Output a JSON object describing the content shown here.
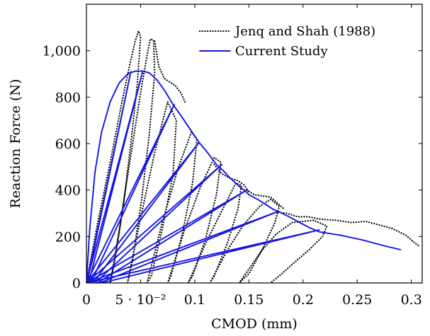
{
  "chart_data": {
    "type": "line",
    "xlabel": "CMOD (mm)",
    "ylabel": "Reaction Force (N)",
    "xlim": [
      0,
      0.31
    ],
    "ylim": [
      0,
      1200
    ],
    "x_ticks": [
      0,
      0.05,
      0.1,
      0.15,
      0.2,
      0.25,
      0.3
    ],
    "x_tick_labels": [
      "0",
      "5 · 10⁻²",
      "0.1",
      "0.15",
      "0.2",
      "0.25",
      "0.3"
    ],
    "y_ticks": [
      0,
      200,
      400,
      600,
      800,
      1000
    ],
    "y_tick_labels": [
      "0",
      "200",
      "400",
      "600",
      "800",
      "1,000"
    ],
    "grid": false,
    "legend_position": "top-right",
    "series": [
      {
        "name": "Jenq and Shah (1988)",
        "style": "dotted",
        "color": "#000000",
        "segments": [
          [
            [
              0,
              0
            ],
            [
              0.01,
              250
            ],
            [
              0.022,
              520
            ],
            [
              0.032,
              760
            ],
            [
              0.04,
              940
            ],
            [
              0.045,
              1040
            ],
            [
              0.048,
              1085
            ],
            [
              0.05,
              1060
            ],
            [
              0.047,
              860
            ],
            [
              0.041,
              600
            ],
            [
              0.034,
              330
            ],
            [
              0.026,
              90
            ],
            [
              0.022,
              0
            ]
          ],
          [
            [
              0.022,
              0
            ],
            [
              0.03,
              220
            ],
            [
              0.04,
              520
            ],
            [
              0.05,
              820
            ],
            [
              0.056,
              980
            ],
            [
              0.059,
              1050
            ],
            [
              0.062,
              1045
            ],
            [
              0.063,
              900
            ],
            [
              0.058,
              640
            ],
            [
              0.051,
              360
            ],
            [
              0.043,
              110
            ],
            [
              0.038,
              0
            ]
          ],
          [
            [
              0.063,
              1040
            ],
            [
              0.067,
              930
            ],
            [
              0.072,
              880
            ],
            [
              0.077,
              865
            ],
            [
              0.082,
              850
            ],
            [
              0.087,
              820
            ],
            [
              0.091,
              780
            ]
          ],
          [
            [
              0.038,
              0
            ],
            [
              0.05,
              280
            ],
            [
              0.063,
              560
            ],
            [
              0.075,
              780
            ],
            [
              0.083,
              700
            ],
            [
              0.08,
              470
            ],
            [
              0.07,
              230
            ],
            [
              0.06,
              30
            ],
            [
              0.056,
              0
            ]
          ],
          [
            [
              0.056,
              0
            ],
            [
              0.07,
              260
            ],
            [
              0.085,
              500
            ],
            [
              0.097,
              650
            ],
            [
              0.102,
              620
            ],
            [
              0.098,
              430
            ],
            [
              0.088,
              200
            ],
            [
              0.078,
              30
            ],
            [
              0.075,
              0
            ]
          ],
          [
            [
              0.075,
              0
            ],
            [
              0.09,
              220
            ],
            [
              0.105,
              410
            ],
            [
              0.118,
              540
            ],
            [
              0.124,
              520
            ],
            [
              0.12,
              380
            ],
            [
              0.11,
              190
            ],
            [
              0.098,
              30
            ],
            [
              0.094,
              0
            ]
          ],
          [
            [
              0.094,
              0
            ],
            [
              0.11,
              170
            ],
            [
              0.125,
              310
            ],
            [
              0.138,
              430
            ],
            [
              0.143,
              420
            ],
            [
              0.14,
              320
            ],
            [
              0.13,
              170
            ],
            [
              0.118,
              30
            ],
            [
              0.114,
              0
            ]
          ],
          [
            [
              0.118,
              510
            ],
            [
              0.125,
              470
            ],
            [
              0.133,
              450
            ],
            [
              0.14,
              440
            ],
            [
              0.146,
              420
            ],
            [
              0.15,
              390
            ]
          ],
          [
            [
              0.114,
              0
            ],
            [
              0.13,
              140
            ],
            [
              0.145,
              250
            ],
            [
              0.16,
              330
            ],
            [
              0.17,
              360
            ],
            [
              0.178,
              330
            ],
            [
              0.174,
              260
            ],
            [
              0.163,
              150
            ],
            [
              0.15,
              40
            ],
            [
              0.141,
              0
            ]
          ],
          [
            [
              0.148,
              400
            ],
            [
              0.155,
              380
            ],
            [
              0.162,
              375
            ],
            [
              0.17,
              370
            ],
            [
              0.176,
              345
            ],
            [
              0.182,
              320
            ]
          ],
          [
            [
              0.141,
              0
            ],
            [
              0.15,
              60
            ],
            [
              0.162,
              140
            ],
            [
              0.175,
              210
            ],
            [
              0.19,
              260
            ],
            [
              0.21,
              270
            ],
            [
              0.222,
              245
            ],
            [
              0.218,
              200
            ],
            [
              0.205,
              140
            ],
            [
              0.19,
              80
            ],
            [
              0.178,
              30
            ],
            [
              0.17,
              0
            ]
          ],
          [
            [
              0.175,
              305
            ],
            [
              0.185,
              300
            ],
            [
              0.195,
              285
            ],
            [
              0.205,
              285
            ],
            [
              0.215,
              275
            ],
            [
              0.23,
              270
            ],
            [
              0.245,
              260
            ],
            [
              0.258,
              265
            ],
            [
              0.27,
              250
            ],
            [
              0.282,
              235
            ],
            [
              0.295,
              205
            ],
            [
              0.305,
              165
            ],
            [
              0.308,
              158
            ]
          ]
        ]
      },
      {
        "name": "Current Study",
        "style": "solid",
        "color": "#1414e6",
        "segments": [
          [
            [
              0,
              0
            ],
            [
              0.003,
              230
            ],
            [
              0.008,
              480
            ],
            [
              0.014,
              650
            ],
            [
              0.022,
              780
            ],
            [
              0.03,
              860
            ],
            [
              0.038,
              900
            ],
            [
              0.045,
              912
            ],
            [
              0.052,
              912
            ],
            [
              0.058,
              905
            ],
            [
              0.065,
              875
            ],
            [
              0.072,
              830
            ],
            [
              0.08,
              768
            ],
            [
              0.088,
              715
            ],
            [
              0.096,
              660
            ],
            [
              0.104,
              605
            ],
            [
              0.112,
              560
            ],
            [
              0.12,
              510
            ],
            [
              0.126,
              485
            ],
            [
              0.132,
              455
            ],
            [
              0.14,
              420
            ],
            [
              0.146,
              398
            ],
            [
              0.15,
              380
            ],
            [
              0.158,
              360
            ],
            [
              0.165,
              340
            ],
            [
              0.172,
              318
            ],
            [
              0.177,
              308
            ],
            [
              0.185,
              290
            ],
            [
              0.195,
              265
            ],
            [
              0.205,
              240
            ],
            [
              0.215,
              220
            ],
            [
              0.222,
              215
            ],
            [
              0.235,
              205
            ],
            [
              0.255,
              185
            ],
            [
              0.275,
              160
            ],
            [
              0.29,
              143
            ]
          ],
          [
            [
              0,
              0
            ],
            [
              0.041,
              910
            ],
            [
              0.0005,
              0
            ]
          ],
          [
            [
              0,
              0
            ],
            [
              0.052,
              912
            ],
            [
              0.002,
              0
            ]
          ],
          [
            [
              0,
              0
            ],
            [
              0.081,
              768
            ],
            [
              0.004,
              0
            ]
          ],
          [
            [
              0,
              0
            ],
            [
              0.104,
              605
            ],
            [
              0.006,
              0
            ]
          ],
          [
            [
              0,
              0
            ],
            [
              0.125,
              510
            ],
            [
              0.008,
              0
            ]
          ],
          [
            [
              0,
              0
            ],
            [
              0.148,
              400
            ],
            [
              0.01,
              0
            ]
          ],
          [
            [
              0,
              0
            ],
            [
              0.177,
              308
            ],
            [
              0.012,
              0
            ]
          ],
          [
            [
              0,
              0
            ],
            [
              0.215,
              228
            ],
            [
              0.014,
              0
            ]
          ]
        ]
      }
    ]
  }
}
